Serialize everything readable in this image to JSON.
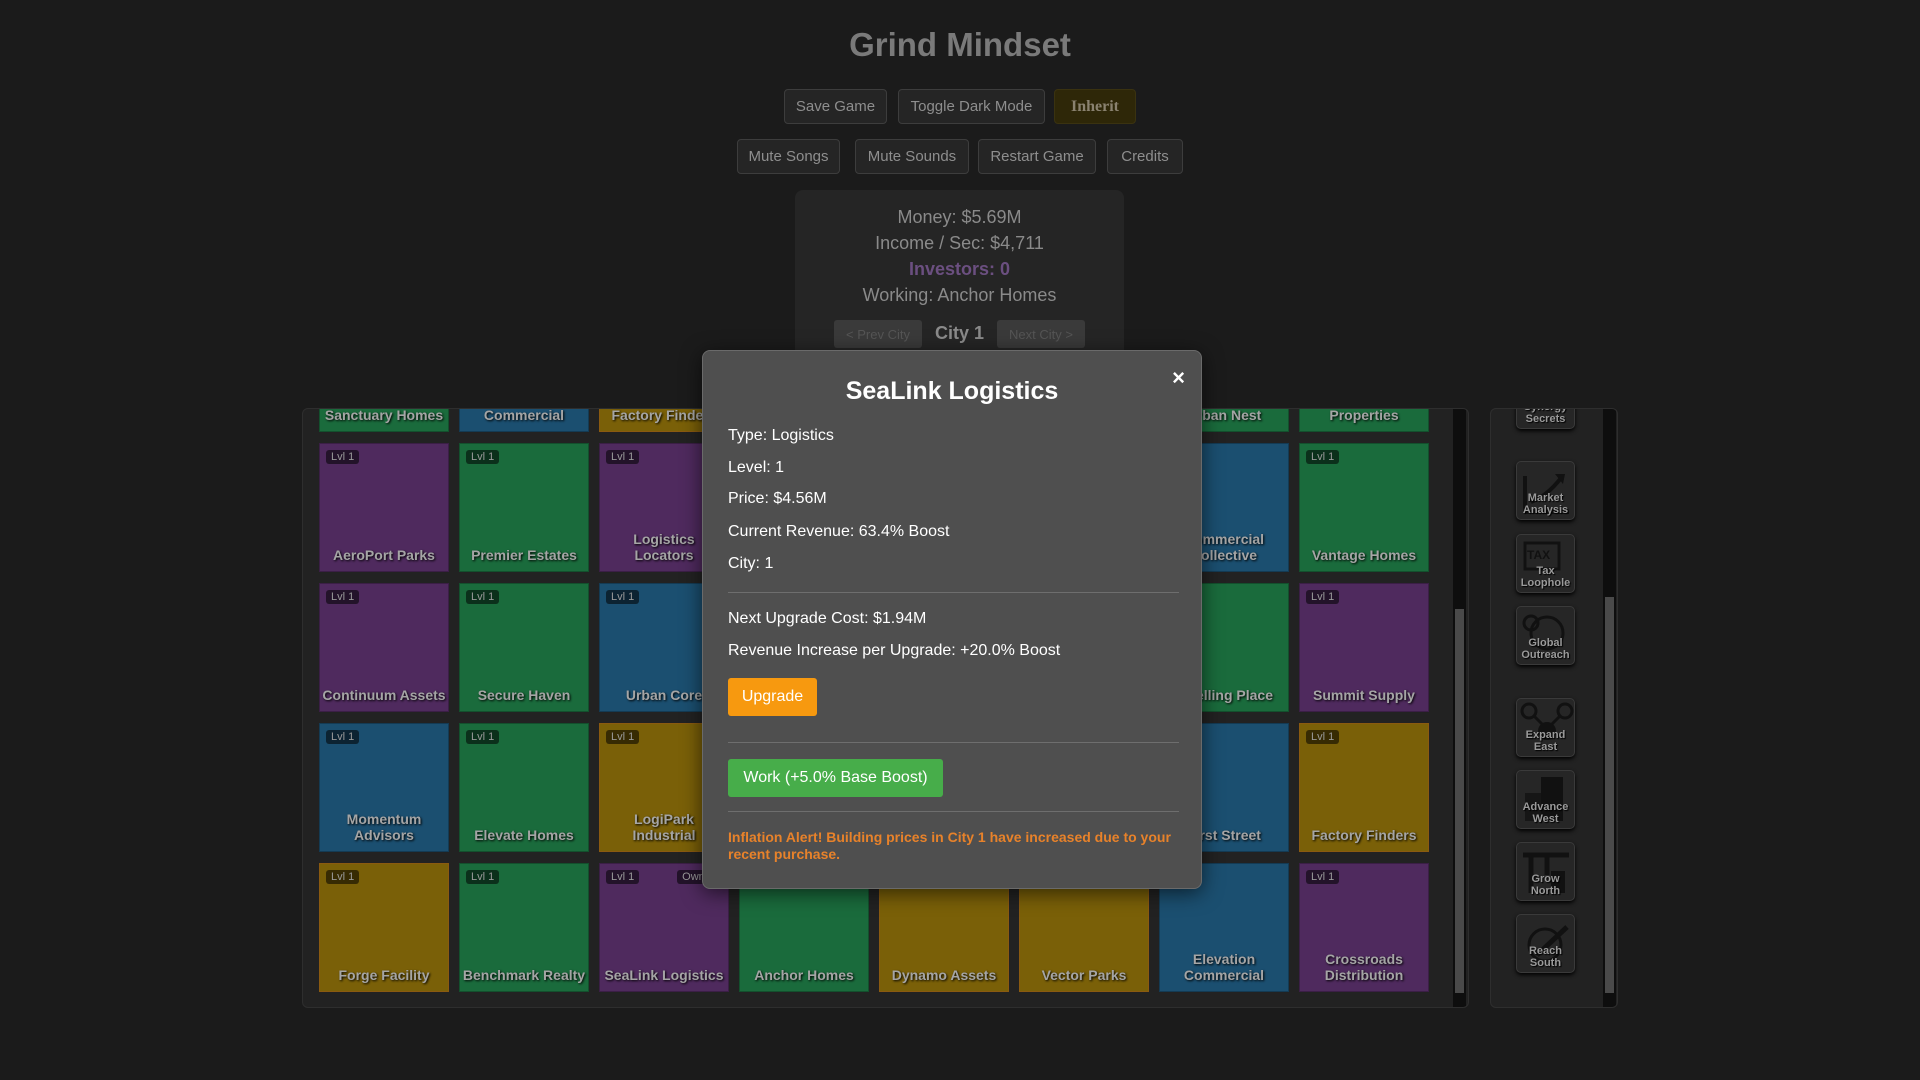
{
  "header": {
    "title": "Grind Mindset"
  },
  "toolbar": {
    "save": "Save Game",
    "dark_mode": "Toggle Dark Mode",
    "inherit": "Inherit",
    "mute_songs": "Mute Songs",
    "mute_sounds": "Mute Sounds",
    "restart": "Restart Game",
    "credits": "Credits"
  },
  "stats": {
    "money": "Money: $5.69M",
    "income": "Income / Sec: $4,711",
    "investors": "Investors: 0",
    "working": "Working: Anchor Homes",
    "prev_city": "< Prev City",
    "city": "City 1",
    "next_city": "Next City >"
  },
  "colors": {
    "residential": "#1a6b3c",
    "commercial": "#1b4f70",
    "logistics": "#4f2a5e",
    "industrial": "#7a6008",
    "hidden": "#333333"
  },
  "grid": {
    "rows": [
      [
        {
          "name": "Sanctuary Homes",
          "type": "residential"
        },
        {
          "name": "Commercial",
          "type": "commercial"
        },
        {
          "name": "Factory Finders",
          "type": "industrial"
        },
        {
          "name": "",
          "type": "hidden"
        },
        {
          "name": "",
          "type": "hidden"
        },
        {
          "name": "",
          "type": "hidden"
        },
        {
          "name": "Urban Nest",
          "type": "residential"
        },
        {
          "name": "Properties",
          "type": "residential"
        }
      ],
      [
        {
          "name": "AeroPort Parks",
          "type": "logistics",
          "level": "Lvl 1"
        },
        {
          "name": "Premier Estates",
          "type": "residential",
          "level": "Lvl 1"
        },
        {
          "name": "Logistics Locators",
          "type": "logistics",
          "level": "Lvl 1"
        },
        {
          "name": "",
          "type": "hidden"
        },
        {
          "name": "",
          "type": "hidden"
        },
        {
          "name": "",
          "type": "hidden"
        },
        {
          "name": "Commercial Collective",
          "type": "commercial"
        },
        {
          "name": "Vantage Homes",
          "type": "residential",
          "level": "Lvl 1"
        }
      ],
      [
        {
          "name": "Continuum Assets",
          "type": "logistics",
          "level": "Lvl 1"
        },
        {
          "name": "Secure Haven",
          "type": "residential",
          "level": "Lvl 1"
        },
        {
          "name": "Urban Core",
          "type": "commercial",
          "level": "Lvl 1"
        },
        {
          "name": "",
          "type": "hidden"
        },
        {
          "name": "",
          "type": "hidden"
        },
        {
          "name": "",
          "type": "hidden"
        },
        {
          "name": "Dwelling Place",
          "type": "residential"
        },
        {
          "name": "Summit Supply",
          "type": "logistics",
          "level": "Lvl 1"
        }
      ],
      [
        {
          "name": "Momentum Advisors",
          "type": "commercial",
          "level": "Lvl 1"
        },
        {
          "name": "Elevate Homes",
          "type": "residential",
          "level": "Lvl 1"
        },
        {
          "name": "LogiPark Industrial",
          "type": "industrial",
          "level": "Lvl 1"
        },
        {
          "name": "",
          "type": "hidden"
        },
        {
          "name": "",
          "type": "hidden"
        },
        {
          "name": "",
          "type": "hidden"
        },
        {
          "name": "First Street",
          "type": "commercial"
        },
        {
          "name": "Factory Finders",
          "type": "industrial",
          "level": "Lvl 1"
        }
      ],
      [
        {
          "name": "Forge Facility",
          "type": "industrial",
          "level": "Lvl 1"
        },
        {
          "name": "Benchmark Realty",
          "type": "residential",
          "level": "Lvl 1"
        },
        {
          "name": "SeaLink Logistics",
          "type": "logistics",
          "level": "Lvl 1",
          "badge": "Owned"
        },
        {
          "name": "Anchor Homes",
          "type": "residential"
        },
        {
          "name": "Dynamo Assets",
          "type": "industrial"
        },
        {
          "name": "Vector Parks",
          "type": "industrial"
        },
        {
          "name": "Elevation Commercial",
          "type": "commercial"
        },
        {
          "name": "Crossroads Distribution",
          "type": "logistics",
          "level": "Lvl 1"
        }
      ]
    ]
  },
  "upgrades": [
    {
      "label": "Synergy Secrets",
      "icon": "synergy-icon"
    },
    {
      "label": "Market Analysis",
      "icon": "chart-up-icon"
    },
    {
      "label": "Tax Loophole",
      "icon": "tax-scissors-icon"
    },
    {
      "label": "Global Outreach",
      "icon": "globe-icon"
    },
    {
      "label": "Expand East",
      "icon": "network-icon"
    },
    {
      "label": "Advance West",
      "icon": "buildings-icon"
    },
    {
      "label": "Grow North",
      "icon": "crane-icon"
    },
    {
      "label": "Reach South",
      "icon": "plane-globe-icon"
    }
  ],
  "modal": {
    "title": "SeaLink Logistics",
    "close": "×",
    "type": "Type: Logistics",
    "level": "Level: 1",
    "price": "Price: $4.56M",
    "revenue": "Current Revenue: 63.4% Boost",
    "city": "City: 1",
    "next_cost": "Next Upgrade Cost: $1.94M",
    "rev_increase": "Revenue Increase per Upgrade: +20.0% Boost",
    "upgrade": "Upgrade",
    "work": "Work (+5.0% Base Boost)",
    "alert": "Inflation Alert! Building prices in City 1 have increased due to your recent purchase."
  }
}
